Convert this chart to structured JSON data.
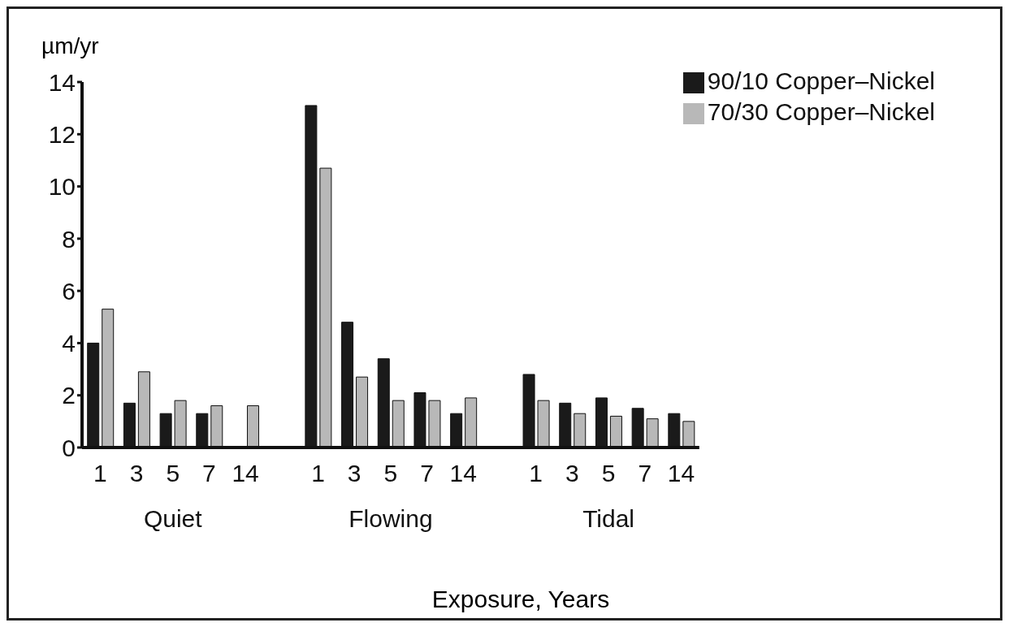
{
  "chart_data": {
    "type": "bar",
    "ylabel": "µm/yr",
    "xlabel": "Exposure, Years",
    "categories": [
      "1",
      "3",
      "5",
      "7",
      "14",
      null,
      "1",
      "3",
      "5",
      "7",
      "14",
      null,
      "1",
      "3",
      "5",
      "7",
      "14"
    ],
    "series": [
      {
        "name": "90/10 Copper–Nickel",
        "color": "#1a1a1a",
        "values": [
          4.0,
          1.7,
          1.3,
          1.3,
          null,
          null,
          13.1,
          4.8,
          3.4,
          2.1,
          1.3,
          null,
          2.8,
          1.7,
          1.9,
          1.5,
          1.3
        ]
      },
      {
        "name": "70/30 Copper–Nickel",
        "color": "#b8b8b8",
        "values": [
          5.3,
          2.9,
          1.8,
          1.6,
          1.6,
          null,
          10.7,
          2.7,
          1.8,
          1.8,
          1.9,
          null,
          1.8,
          1.3,
          1.2,
          1.1,
          1.0
        ]
      }
    ],
    "annotations": [
      "Quiet",
      "Flowing",
      "Tidal"
    ],
    "ylim": [
      0,
      14
    ],
    "yticks": [
      0,
      2,
      4,
      6,
      8,
      10,
      12,
      14
    ],
    "grid": false,
    "legend": "top right"
  }
}
